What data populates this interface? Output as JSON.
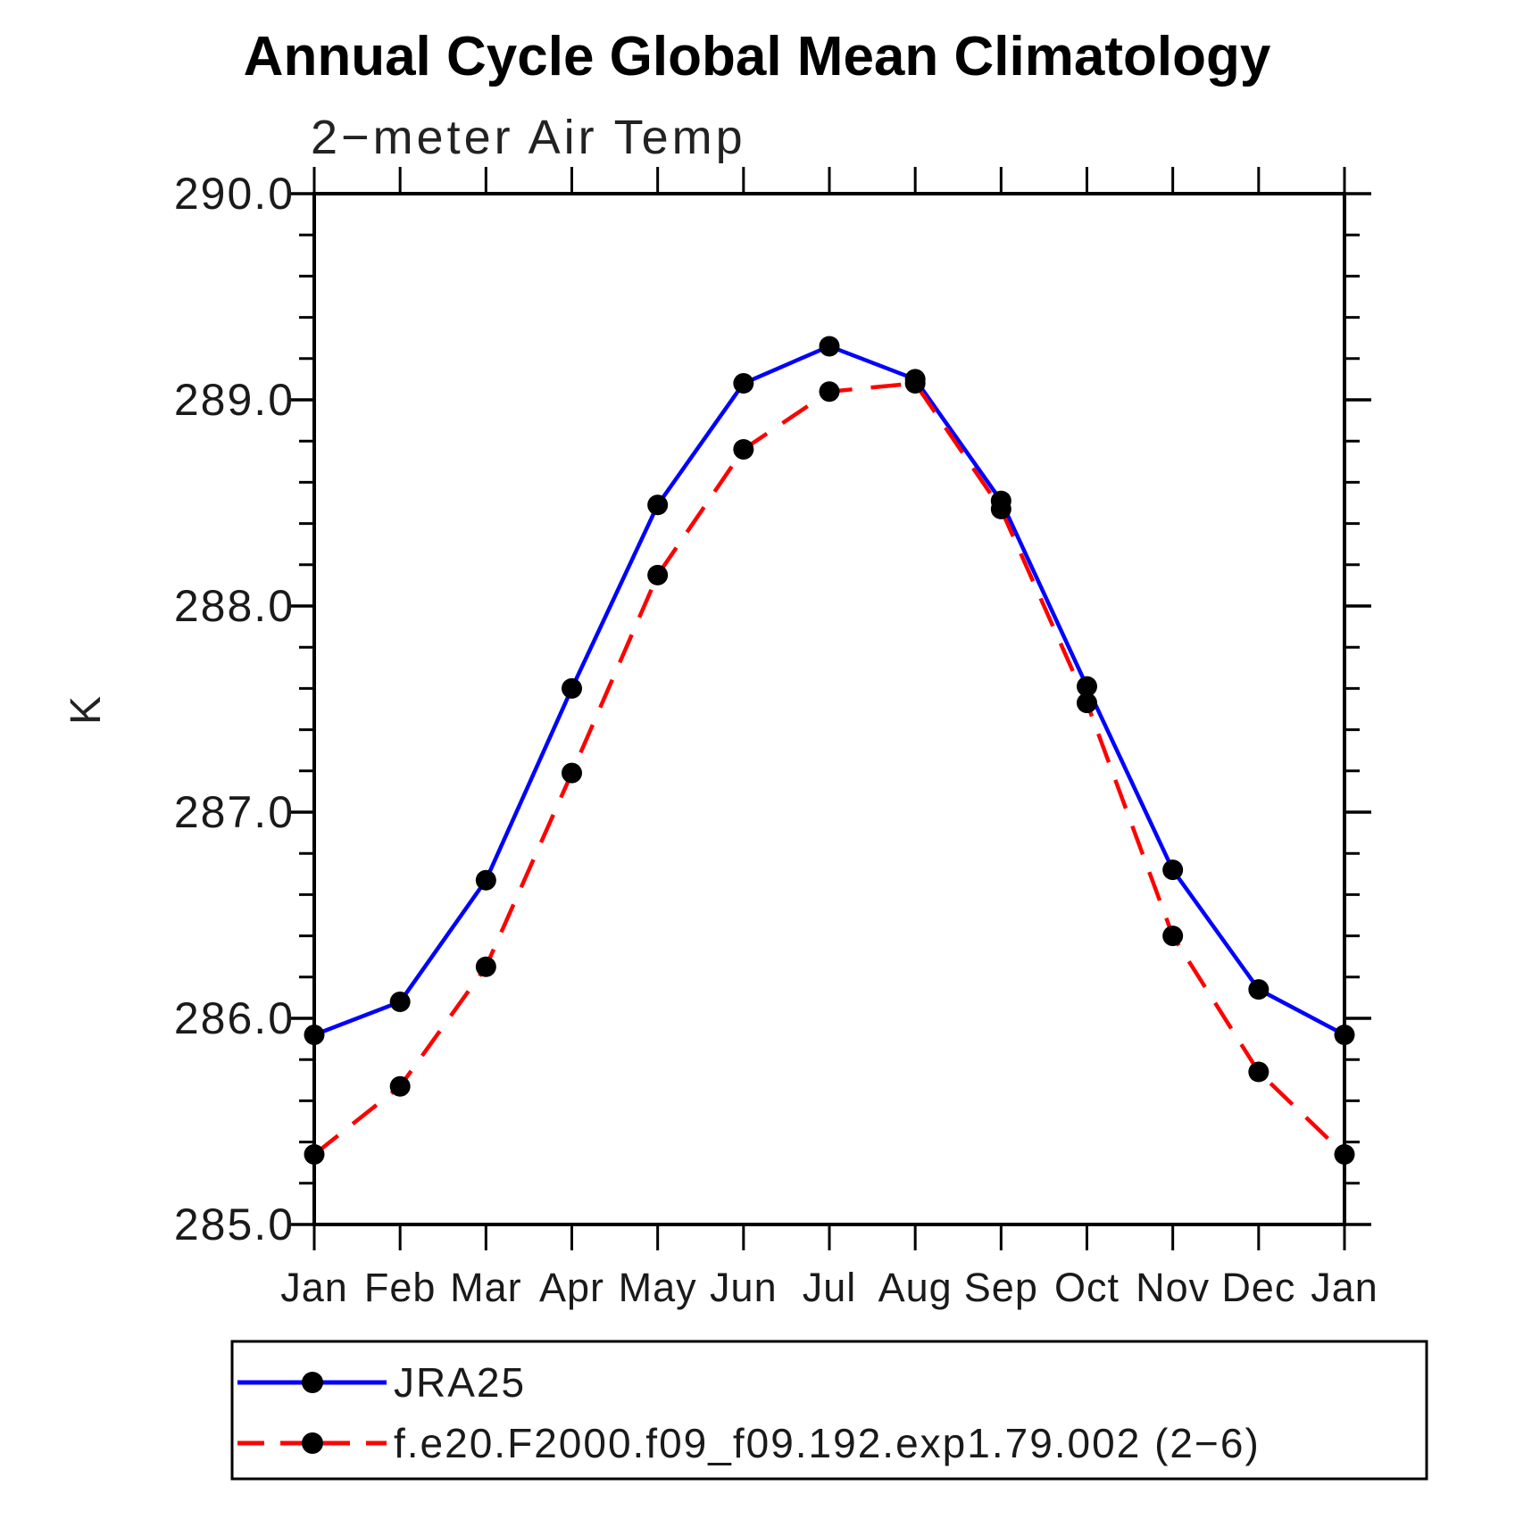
{
  "chart_data": {
    "type": "line",
    "title": "Annual Cycle Global Mean Climatology",
    "subtitle": "2−meter Air Temp",
    "ylabel": "K",
    "xlabel": "",
    "categories": [
      "Jan",
      "Feb",
      "Mar",
      "Apr",
      "May",
      "Jun",
      "Jul",
      "Aug",
      "Sep",
      "Oct",
      "Nov",
      "Dec",
      "Jan"
    ],
    "ylim": [
      285.0,
      290.0
    ],
    "ytick_major_step": 1.0,
    "ytick_minor_step": 0.2,
    "ytick_labels": [
      "285.0",
      "286.0",
      "287.0",
      "288.0",
      "289.0",
      "290.0"
    ],
    "grid": false,
    "legend_position": "bottom",
    "frame_color": "#000000",
    "series": [
      {
        "name": "JRA25",
        "color": "#0000ff",
        "line_style": "solid",
        "marker": "circle",
        "marker_color": "#000000",
        "values": [
          285.92,
          286.08,
          286.67,
          287.6,
          288.49,
          289.08,
          289.26,
          289.1,
          288.51,
          287.61,
          286.72,
          286.14,
          285.92
        ]
      },
      {
        "name": "f.e20.F2000.f09_f09.192.exp1.79.002 (2−6)",
        "color": "#ff0000",
        "line_style": "dashed",
        "marker": "circle",
        "marker_color": "#000000",
        "values": [
          285.34,
          285.67,
          286.25,
          287.19,
          288.15,
          288.76,
          289.04,
          289.08,
          288.47,
          287.53,
          286.4,
          285.74,
          285.34
        ]
      }
    ]
  }
}
